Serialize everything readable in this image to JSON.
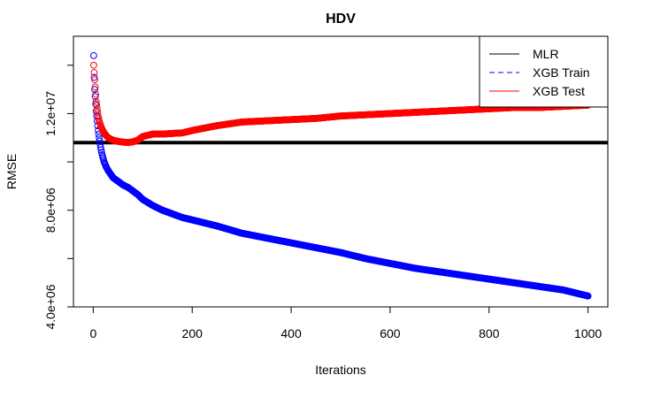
{
  "chart_data": {
    "type": "scatter",
    "title": "HDV",
    "xlabel": "Iterations",
    "ylabel": "RMSE",
    "xlim": [
      -40,
      1040
    ],
    "ylim": [
      4000000,
      15200000
    ],
    "x_ticks": [
      0,
      200,
      400,
      600,
      800,
      1000
    ],
    "x_tick_labels": [
      "0",
      "200",
      "400",
      "600",
      "800",
      "1000"
    ],
    "y_ticks": [
      4000000,
      6000000,
      8000000,
      10000000,
      12000000,
      14000000
    ],
    "y_tick_labels": [
      "4.0e+06",
      "",
      "8.0e+06",
      "",
      "1.2e+07",
      ""
    ],
    "legend_position": "top-right",
    "legend": [
      {
        "label": "MLR",
        "color": "#000000",
        "style": "solid"
      },
      {
        "label": "XGB Train",
        "color": "#0000ff",
        "style": "dashed"
      },
      {
        "label": "XGB Test",
        "color": "#ff0000",
        "style": "solid"
      }
    ],
    "series": [
      {
        "name": "MLR",
        "kind": "hline",
        "color": "#000000",
        "y": 10800000
      },
      {
        "name": "XGB Train",
        "kind": "points",
        "color": "#0000ff",
        "x": [
          1,
          2,
          3,
          4,
          5,
          6,
          8,
          10,
          12,
          15,
          18,
          22,
          26,
          30,
          35,
          40,
          50,
          60,
          70,
          80,
          90,
          100,
          120,
          140,
          160,
          180,
          200,
          250,
          300,
          350,
          400,
          450,
          500,
          550,
          600,
          650,
          700,
          750,
          800,
          850,
          900,
          950,
          1000
        ],
        "y": [
          14400000,
          13500000,
          13000000,
          12700000,
          12400000,
          12100000,
          11700000,
          11300000,
          11000000,
          10600000,
          10300000,
          10000000,
          9800000,
          9650000,
          9500000,
          9350000,
          9200000,
          9050000,
          8950000,
          8800000,
          8650000,
          8450000,
          8200000,
          8000000,
          7850000,
          7700000,
          7600000,
          7350000,
          7050000,
          6850000,
          6650000,
          6450000,
          6250000,
          6000000,
          5800000,
          5600000,
          5450000,
          5300000,
          5150000,
          5000000,
          4850000,
          4700000,
          4450000
        ]
      },
      {
        "name": "XGB Test",
        "kind": "points",
        "color": "#ff0000",
        "x": [
          1,
          2,
          3,
          4,
          5,
          6,
          8,
          10,
          12,
          15,
          18,
          22,
          26,
          30,
          35,
          40,
          50,
          60,
          70,
          80,
          90,
          100,
          120,
          140,
          160,
          180,
          200,
          250,
          300,
          350,
          400,
          450,
          500,
          550,
          600,
          650,
          700,
          750,
          800,
          850,
          900,
          950,
          1000
        ],
        "y": [
          14000000,
          13700000,
          13400000,
          13100000,
          12800000,
          12500000,
          12200000,
          11900000,
          11700000,
          11500000,
          11350000,
          11200000,
          11100000,
          11000000,
          10950000,
          10900000,
          10850000,
          10820000,
          10800000,
          10830000,
          10900000,
          11050000,
          11150000,
          11150000,
          11180000,
          11200000,
          11300000,
          11500000,
          11650000,
          11700000,
          11750000,
          11800000,
          11900000,
          11950000,
          12000000,
          12050000,
          12100000,
          12150000,
          12200000,
          12250000,
          12250000,
          12300000,
          12350000
        ]
      }
    ]
  }
}
